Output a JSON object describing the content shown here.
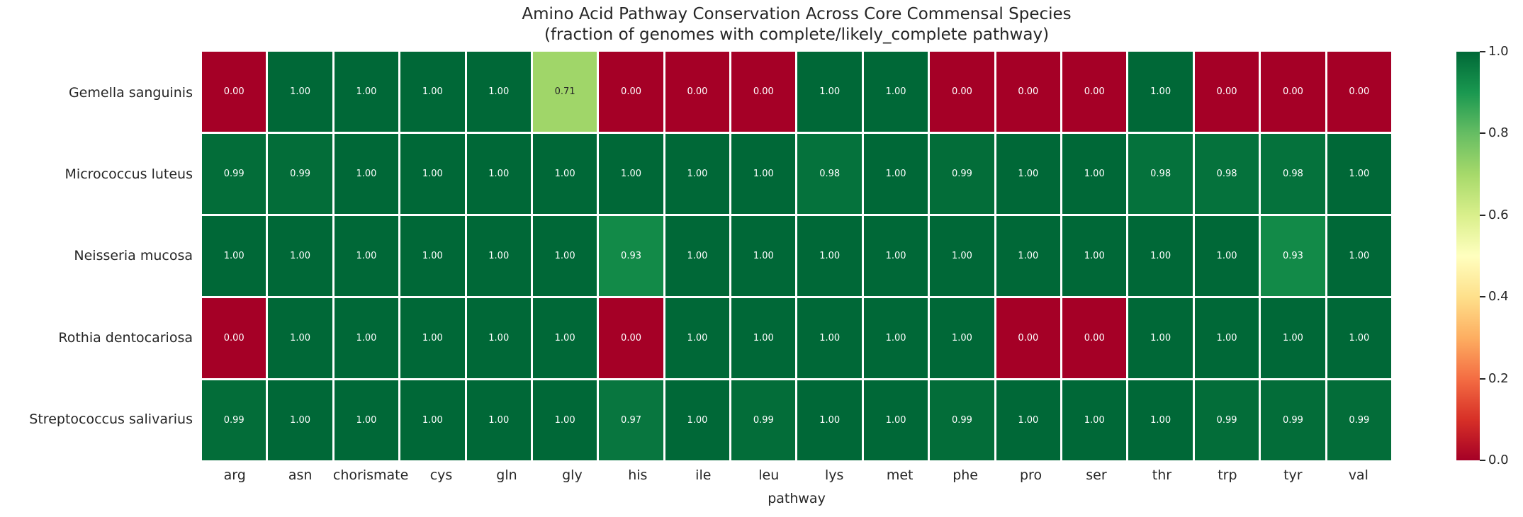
{
  "chart_data": {
    "type": "heatmap",
    "title": "Amino Acid Pathway Conservation Across Core Commensal Species",
    "subtitle": "(fraction of genomes with complete/likely_complete pathway)",
    "xlabel": "pathway",
    "ylabel": "",
    "columns": [
      "arg",
      "asn",
      "chorismate",
      "cys",
      "gln",
      "gly",
      "his",
      "ile",
      "leu",
      "lys",
      "met",
      "phe",
      "pro",
      "ser",
      "thr",
      "trp",
      "tyr",
      "val"
    ],
    "rows": [
      "Gemella sanguinis",
      "Micrococcus luteus",
      "Neisseria mucosa",
      "Rothia dentocariosa",
      "Streptococcus salivarius"
    ],
    "values": [
      [
        0.0,
        1.0,
        1.0,
        1.0,
        1.0,
        0.71,
        0.0,
        0.0,
        0.0,
        1.0,
        1.0,
        0.0,
        0.0,
        0.0,
        1.0,
        0.0,
        0.0,
        0.0
      ],
      [
        0.99,
        0.99,
        1.0,
        1.0,
        1.0,
        1.0,
        1.0,
        1.0,
        1.0,
        0.98,
        1.0,
        0.99,
        1.0,
        1.0,
        0.98,
        0.98,
        0.98,
        1.0
      ],
      [
        1.0,
        1.0,
        1.0,
        1.0,
        1.0,
        1.0,
        0.93,
        1.0,
        1.0,
        1.0,
        1.0,
        1.0,
        1.0,
        1.0,
        1.0,
        1.0,
        0.93,
        1.0
      ],
      [
        0.0,
        1.0,
        1.0,
        1.0,
        1.0,
        1.0,
        0.0,
        1.0,
        1.0,
        1.0,
        1.0,
        1.0,
        0.0,
        0.0,
        1.0,
        1.0,
        1.0,
        1.0
      ],
      [
        0.99,
        1.0,
        1.0,
        1.0,
        1.0,
        1.0,
        0.97,
        1.0,
        0.99,
        1.0,
        1.0,
        0.99,
        1.0,
        1.0,
        1.0,
        0.99,
        0.99,
        0.99
      ]
    ],
    "vmin": 0.0,
    "vmax": 1.0,
    "value_decimals": 2,
    "colormap": "RdYlGn",
    "colormap_anchors": [
      "#a50026",
      "#d73027",
      "#f46d43",
      "#fdae61",
      "#fee08b",
      "#ffffbf",
      "#d9ef8b",
      "#a6d96a",
      "#66bd63",
      "#1a9850",
      "#006837"
    ],
    "annotation_text_colors": {
      "on_dark": "#ffffff",
      "on_light": "#262626"
    },
    "colorbar_ticks": [
      "1.0",
      "0.8",
      "0.6",
      "0.4",
      "0.2",
      "0.0"
    ],
    "legend_position": "right",
    "grid": "white-gaps-between-cells"
  }
}
